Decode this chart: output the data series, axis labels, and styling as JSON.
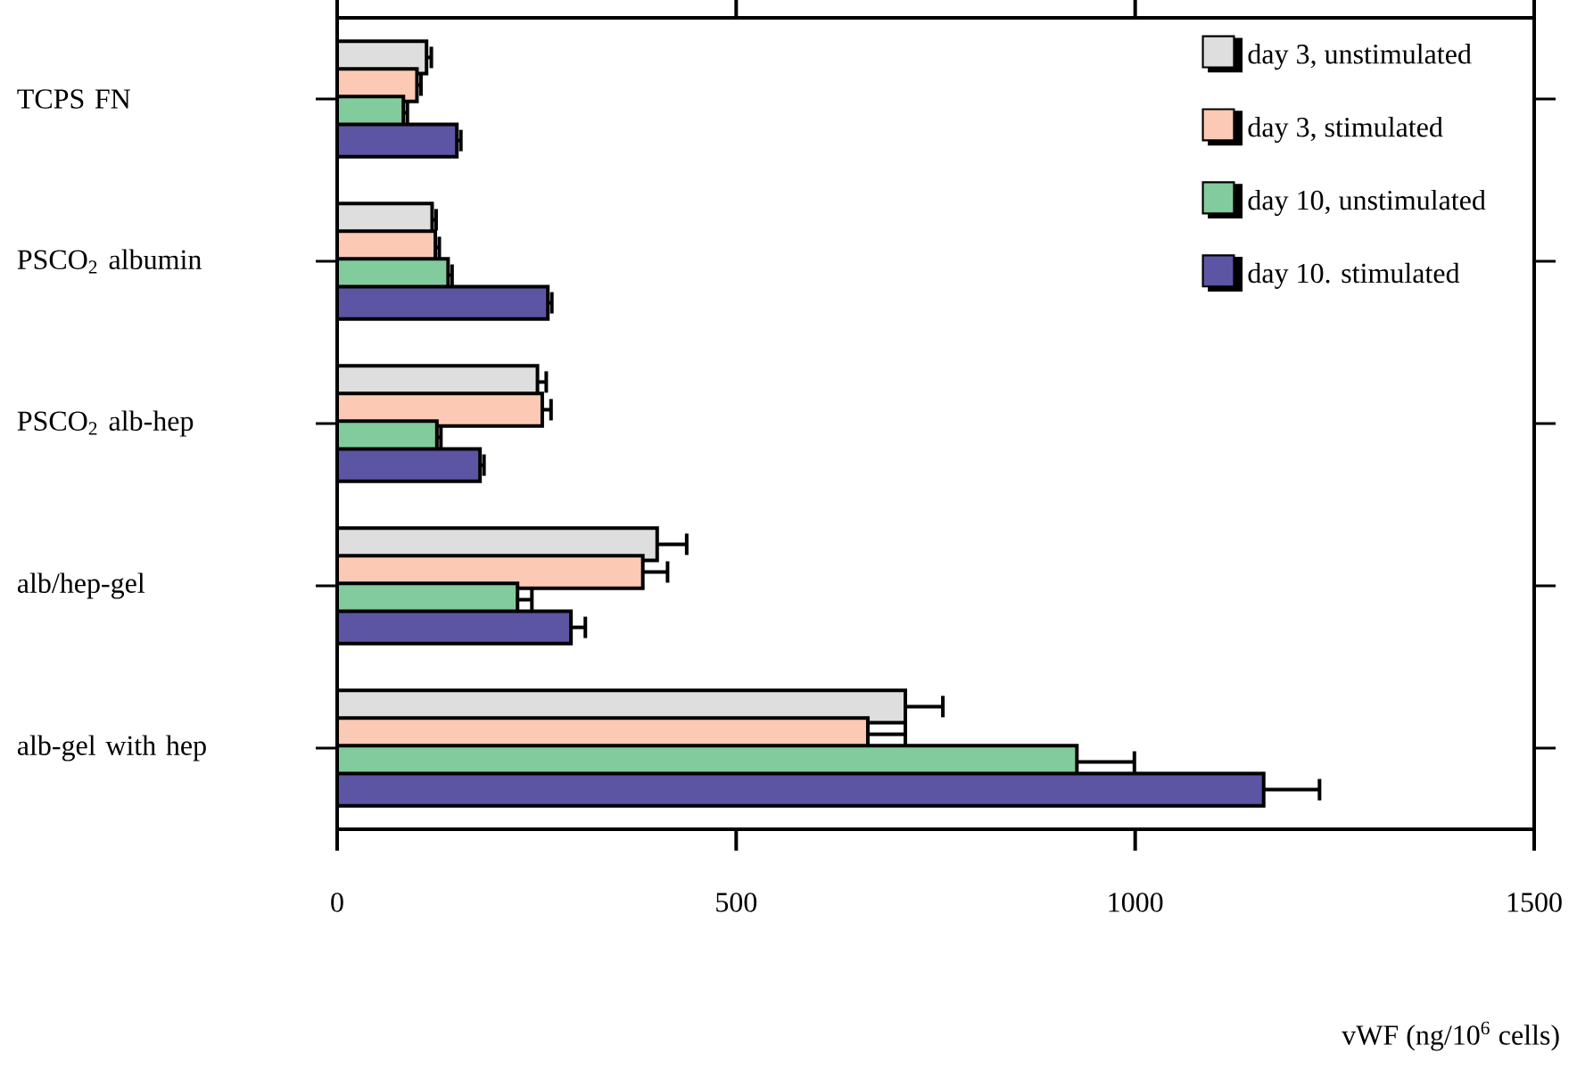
{
  "chart_data": {
    "type": "bar",
    "orientation": "horizontal",
    "xlabel": "vWF  (ng/10$^{6}$ cells)",
    "categories": [
      "TCPS FN",
      "PSCO$_{2}$  albumin",
      "PSCO$_{2}$  alb-hep",
      "alb/hep-gel",
      "alb-gel with hep"
    ],
    "series": [
      {
        "name": "day 3, unstimulated",
        "color": "#dedede",
        "values": [
          112,
          119,
          251,
          401,
          712
        ],
        "errors": [
          6,
          5,
          11,
          37,
          47
        ]
      },
      {
        "name": "day 3, stimulated",
        "color": "#fccab4",
        "values": [
          100,
          123,
          257,
          383,
          665
        ],
        "errors": [
          5,
          5,
          11,
          31,
          47
        ]
      },
      {
        "name": "day 10, unstimulated",
        "color": "#82cb9c",
        "values": [
          83,
          139,
          125,
          226,
          927
        ],
        "errors": [
          5,
          5,
          5,
          18,
          72
        ]
      },
      {
        "name": "day 10. stimulated",
        "color": "#5b55a3",
        "values": [
          150,
          264,
          179,
          293,
          1161
        ],
        "errors": [
          5,
          5,
          5,
          18,
          70
        ]
      }
    ],
    "xlim": [
      0,
      1500
    ],
    "xticks": [
      0,
      500,
      1000,
      1500
    ],
    "legend": "top right"
  }
}
